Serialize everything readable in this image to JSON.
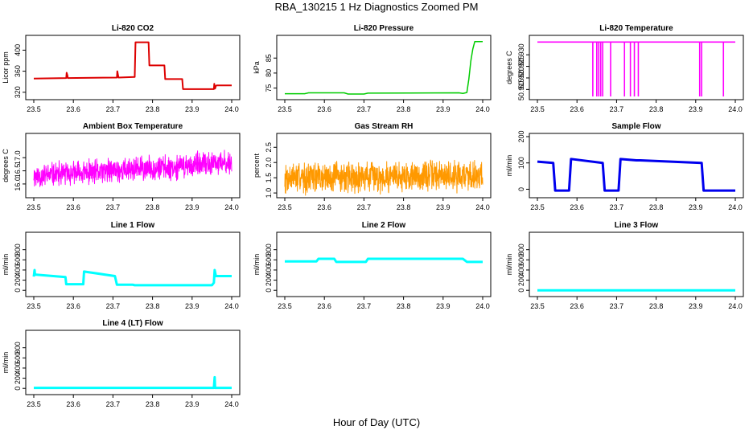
{
  "figure": {
    "title": "RBA_130215  1 Hz Diagnostics Zoomed PM",
    "x_axis_title": "Hour of Day (UTC)"
  },
  "colors": {
    "red": "#dd0000",
    "green": "#00cc00",
    "magenta": "#ff00ff",
    "orange": "#ff9900",
    "blue": "#0000ee",
    "cyan": "#00ffff"
  },
  "chart_data": [
    {
      "id": "co2",
      "type": "line",
      "title": "Li-820 CO2",
      "ylabel": "Licor ppm",
      "color": "red",
      "xlim": [
        23.5,
        24.0
      ],
      "ylim": [
        312,
        422
      ],
      "xticks": [
        23.5,
        23.6,
        23.7,
        23.8,
        23.9,
        24.0
      ],
      "yticks": [
        320,
        360,
        400
      ],
      "x": [
        23.5,
        23.582,
        23.583,
        23.585,
        23.586,
        23.71,
        23.711,
        23.713,
        23.714,
        23.755,
        23.757,
        23.79,
        23.792,
        23.83,
        23.832,
        23.875,
        23.877,
        23.955,
        23.956,
        23.958,
        23.96,
        23.962,
        24.0
      ],
      "y": [
        346,
        347,
        357,
        352,
        347,
        348,
        360,
        352,
        348,
        349,
        415,
        415,
        371,
        371,
        345,
        345,
        326,
        326,
        336,
        327,
        332,
        333,
        333
      ]
    },
    {
      "id": "pressure",
      "type": "line",
      "title": "Li-820 Pressure",
      "ylabel": "kPa",
      "color": "green",
      "xlim": [
        23.5,
        24.0
      ],
      "ylim": [
        72.2,
        91.5
      ],
      "xticks": [
        23.5,
        23.6,
        23.7,
        23.8,
        23.9,
        24.0
      ],
      "yticks": [
        75,
        80,
        85
      ],
      "x": [
        23.5,
        23.55,
        23.56,
        23.65,
        23.66,
        23.7,
        23.71,
        23.94,
        23.95,
        23.96,
        23.965,
        23.97,
        23.975,
        23.98,
        24.0
      ],
      "y": [
        73.1,
        73.1,
        73.4,
        73.4,
        73.0,
        73.0,
        73.3,
        73.4,
        73.2,
        73.5,
        78.0,
        84.0,
        88.0,
        90.5,
        90.5
      ]
    },
    {
      "id": "temperature",
      "type": "line",
      "title": "Li-820 Temperature",
      "ylabel": "degrees C",
      "color": "magenta",
      "xlim": [
        23.5,
        24.0
      ],
      "ylim": [
        50.912,
        50.937
      ],
      "xticks": [
        23.5,
        23.6,
        23.7,
        23.8,
        23.9,
        24.0
      ],
      "yticks": [
        50.915,
        50.92,
        50.925,
        50.93
      ],
      "baseline": 50.9355,
      "drop_to": 50.912,
      "drops": [
        23.64,
        23.65,
        23.655,
        23.66,
        23.665,
        23.685,
        23.72,
        23.735,
        23.745,
        23.755,
        23.91,
        23.915,
        23.97
      ]
    },
    {
      "id": "ambient-temp",
      "type": "line",
      "title": "Ambient Box Temperature",
      "ylabel": "degrees C",
      "color": "magenta",
      "xlim": [
        23.5,
        24.0
      ],
      "ylim": [
        15.6,
        17.8
      ],
      "xticks": [
        23.5,
        23.6,
        23.7,
        23.8,
        23.9,
        24.0
      ],
      "yticks": [
        16.0,
        16.5,
        17.0
      ],
      "noise": {
        "seed": 11,
        "n": 900,
        "center": [
          16.3,
          16.8
        ],
        "spread": 0.55
      }
    },
    {
      "id": "gas-rh",
      "type": "line",
      "title": "Gas Stream RH",
      "ylabel": "percent",
      "color": "orange",
      "xlim": [
        23.5,
        24.0
      ],
      "ylim": [
        0.95,
        2.85
      ],
      "xticks": [
        23.5,
        23.6,
        23.7,
        23.8,
        23.9,
        24.0
      ],
      "yticks": [
        1.0,
        1.5,
        2.0,
        2.5
      ],
      "noise": {
        "seed": 7,
        "n": 900,
        "center": [
          1.5,
          1.6
        ],
        "spread": 0.6
      }
    },
    {
      "id": "sample-flow",
      "type": "line",
      "title": "Sample Flow",
      "ylabel": "ml/min",
      "color": "blue",
      "xlim": [
        23.5,
        24.0
      ],
      "ylim": [
        -20,
        200
      ],
      "xticks": [
        23.5,
        23.6,
        23.7,
        23.8,
        23.9,
        24.0
      ],
      "yticks": [
        0,
        100,
        200
      ],
      "x": [
        23.5,
        23.54,
        23.545,
        23.58,
        23.585,
        23.665,
        23.67,
        23.705,
        23.71,
        23.75,
        23.76,
        23.915,
        23.92,
        24.0
      ],
      "y": [
        105,
        100,
        -5,
        -5,
        115,
        100,
        -5,
        -5,
        115,
        110,
        110,
        100,
        -5,
        -5
      ]
    },
    {
      "id": "line1-flow",
      "type": "line",
      "title": "Line 1 Flow",
      "ylabel": "ml/min",
      "color": "cyan",
      "xlim": [
        23.5,
        24.0
      ],
      "ylim": [
        -60,
        1080
      ],
      "xticks": [
        23.5,
        23.6,
        23.7,
        23.8,
        23.9,
        24.0
      ],
      "yticks": [
        0,
        200,
        400,
        600,
        800
      ],
      "x": [
        23.5,
        23.502,
        23.503,
        23.58,
        23.582,
        23.625,
        23.627,
        23.705,
        23.71,
        23.75,
        23.755,
        23.95,
        23.955,
        23.957,
        23.96,
        24.0
      ],
      "y": [
        270,
        400,
        310,
        260,
        120,
        120,
        370,
        280,
        110,
        110,
        100,
        100,
        150,
        400,
        280,
        280
      ]
    },
    {
      "id": "line2-flow",
      "type": "line",
      "title": "Line 2 Flow",
      "ylabel": "ml/min",
      "color": "cyan",
      "xlim": [
        23.5,
        24.0
      ],
      "ylim": [
        -60,
        1080
      ],
      "xticks": [
        23.5,
        23.6,
        23.7,
        23.8,
        23.9,
        24.0
      ],
      "yticks": [
        0,
        200,
        400,
        600,
        800
      ],
      "x": [
        23.5,
        23.58,
        23.585,
        23.625,
        23.63,
        23.705,
        23.71,
        23.95,
        23.96,
        24.0
      ],
      "y": [
        570,
        570,
        620,
        620,
        560,
        560,
        620,
        620,
        560,
        560
      ]
    },
    {
      "id": "line3-flow",
      "type": "line",
      "title": "Line 3 Flow",
      "ylabel": "ml/min",
      "color": "cyan",
      "xlim": [
        23.5,
        24.0
      ],
      "ylim": [
        -60,
        1080
      ],
      "xticks": [
        23.5,
        23.6,
        23.7,
        23.8,
        23.9,
        24.0
      ],
      "yticks": [
        0,
        200,
        400,
        600,
        800
      ],
      "x": [
        23.5,
        24.0
      ],
      "y": [
        0,
        0
      ]
    },
    {
      "id": "line4-flow",
      "type": "line",
      "title": "Line 4 (LT) Flow",
      "ylabel": "ml/min",
      "color": "cyan",
      "xlim": [
        23.5,
        24.0
      ],
      "ylim": [
        -60,
        1080
      ],
      "xticks": [
        23.5,
        23.6,
        23.7,
        23.8,
        23.9,
        24.0
      ],
      "yticks": [
        0,
        200,
        400,
        600,
        800
      ],
      "x": [
        23.5,
        23.955,
        23.957,
        23.958,
        23.96,
        24.0
      ],
      "y": [
        10,
        10,
        220,
        10,
        10,
        10
      ]
    }
  ]
}
